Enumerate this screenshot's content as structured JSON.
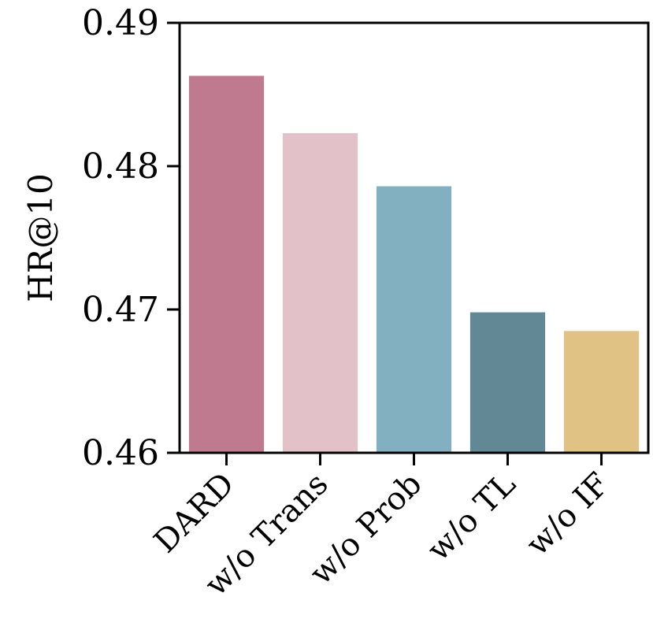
{
  "chart_data": {
    "type": "bar",
    "categories": [
      "DARD",
      "w/o Trans",
      "w/o Prob",
      "w/o TL",
      "w/o IF"
    ],
    "values": [
      0.4863,
      0.4823,
      0.4786,
      0.4698,
      0.4685
    ],
    "colors": [
      "#c07a90",
      "#e2c1c8",
      "#82b0c0",
      "#628896",
      "#e0c285"
    ],
    "xlabel": "",
    "ylabel": "HR@10",
    "ylim": [
      0.46,
      0.49
    ],
    "yticks": [
      0.46,
      0.47,
      0.48,
      0.49
    ],
    "ytick_labels": [
      "0.46",
      "0.47",
      "0.48",
      "0.49"
    ],
    "grid": false,
    "legend": "none"
  }
}
